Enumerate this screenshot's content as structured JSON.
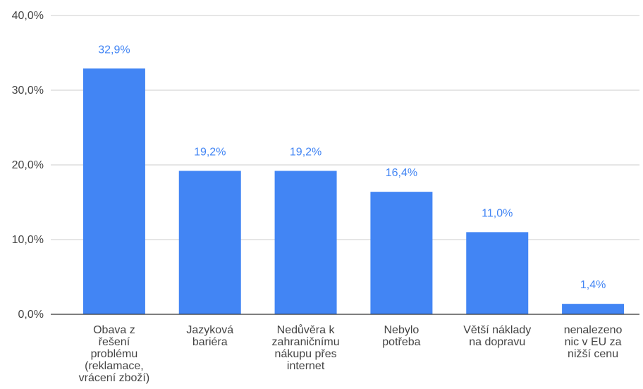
{
  "chart_data": {
    "type": "bar",
    "categories": [
      [
        "Obava z",
        "řešení",
        "problému",
        "(reklamace,",
        "vrácení zboží)"
      ],
      [
        "Jazyková",
        "bariéra"
      ],
      [
        "Nedůvěra k",
        "zahraničnímu",
        "nákupu přes",
        "internet"
      ],
      [
        "Nebylo",
        "potřeba"
      ],
      [
        "Větší náklady",
        "na dopravu"
      ],
      [
        "nenalezeno",
        "nic v EU za",
        "nižší cenu"
      ]
    ],
    "values": [
      32.9,
      19.2,
      19.2,
      16.4,
      11.0,
      1.4
    ],
    "data_labels": [
      "32,9%",
      "19,2%",
      "19,2%",
      "16,4%",
      "11,0%",
      "1,4%"
    ],
    "y_ticks": [
      {
        "value": 0,
        "label": "0,0%"
      },
      {
        "value": 10,
        "label": "10,0%"
      },
      {
        "value": 20,
        "label": "20,0%"
      },
      {
        "value": 30,
        "label": "30,0%"
      },
      {
        "value": 40,
        "label": "40,0%"
      }
    ],
    "ylim": [
      0,
      40
    ],
    "grid": true,
    "title": "",
    "xlabel": "",
    "ylabel": "",
    "colors": {
      "bar": "#4285f4",
      "data_label": "#4285f4",
      "grid": "#cccccc",
      "axis": "#333333",
      "text": "#444444"
    }
  }
}
